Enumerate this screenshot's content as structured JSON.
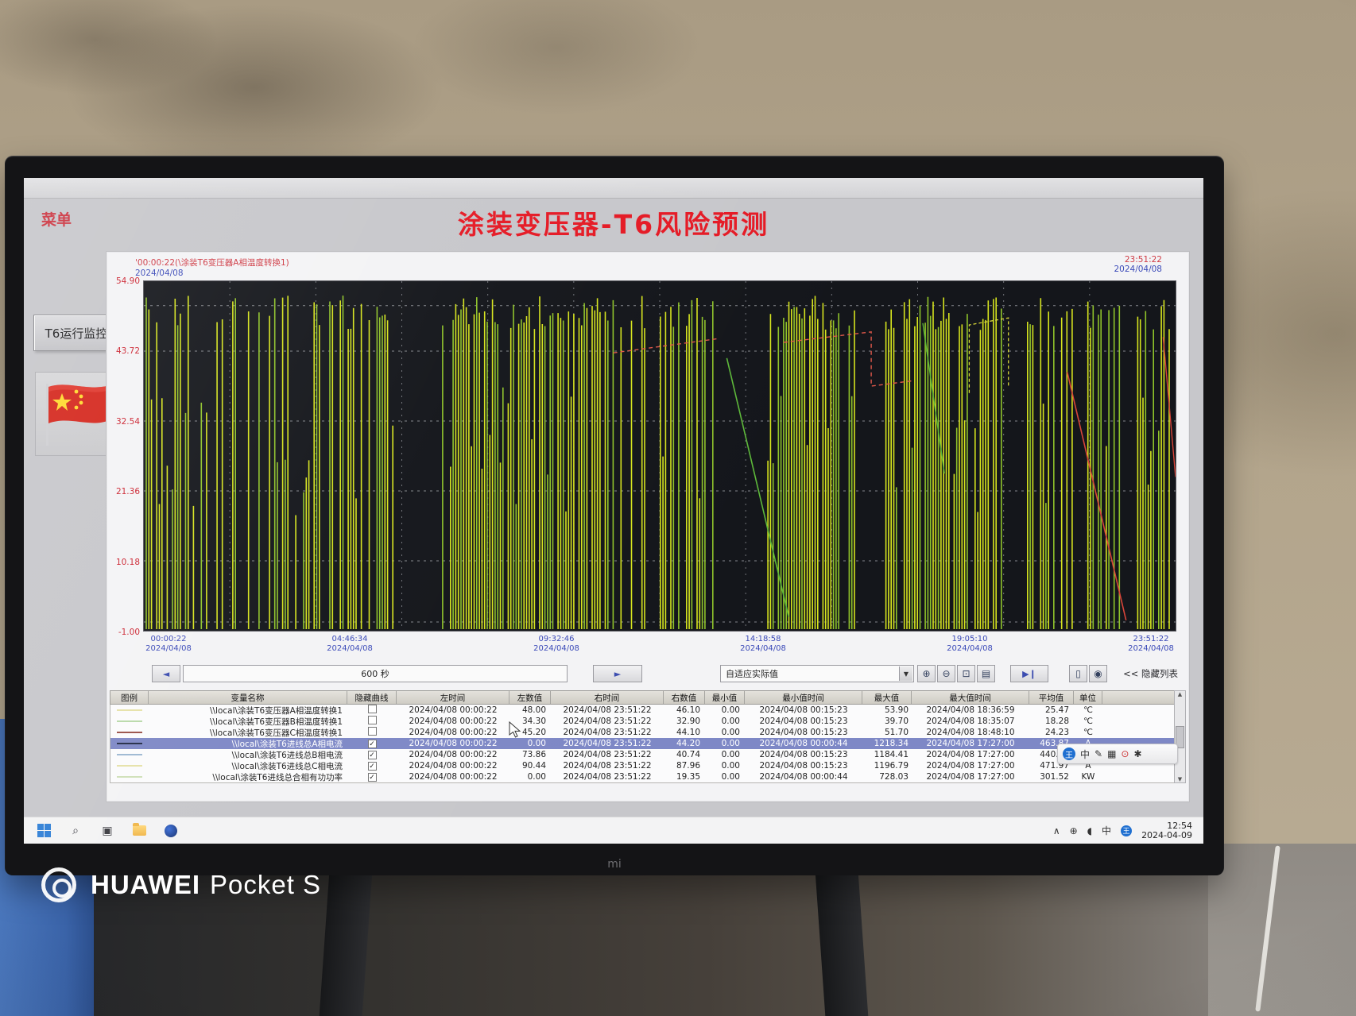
{
  "photo": {
    "watermark": {
      "brand": "HUAWEI",
      "model": "Pocket S"
    },
    "tv_brand": "mi"
  },
  "screen": {
    "menu_label": "菜单",
    "title": "涂装变压器-T6风险预测",
    "sidebar": {
      "monitor_button": "T6运行监控",
      "flag_icon": "china-flag"
    },
    "trend_header": {
      "left_label": "'00:00:22(\\涂装T6变压器A相温度转换1)",
      "left_date": "2024/04/08",
      "right_time": "23:51:22",
      "right_date": "2024/04/08"
    },
    "toolbar": {
      "prev_label": "◄",
      "interval_value": "600 秒",
      "next_label": "►",
      "scale_mode": "自适应实际值",
      "dropdown_arrow": "▼",
      "play_label": "▶❙",
      "hide_list_label": "<< 隐藏列表"
    },
    "table": {
      "headers": [
        "图例",
        "变量名称",
        "隐藏曲线",
        "左时间",
        "左数值",
        "右时间",
        "右数值",
        "最小值",
        "最小值时间",
        "最大值",
        "最大值时间",
        "平均值",
        "单位"
      ]
    },
    "ime": {
      "logo": "王",
      "lang": "中"
    },
    "taskbar": {
      "tray_lang": "中",
      "tray_logo": "王",
      "clock_time": "12:54",
      "clock_date": "2024-04-09"
    },
    "icons": {
      "search": "⌕",
      "task_view": "▣",
      "chevron_up": "∧",
      "globe": "⊕",
      "speaker": "◖",
      "zoom_in": "⊕",
      "zoom_out": "⊖",
      "zoom_box": "⊡",
      "printer": "▤",
      "copy": "▯",
      "settings": "◉",
      "pen": "✎",
      "keyboard": "▦",
      "palette": "⊙",
      "tool": "✱"
    }
  },
  "chart_data": {
    "type": "line",
    "title": "涂装变压器-T6风险预测",
    "x_range": [
      "2024/04/08 00:00:22",
      "2024/04/08 23:51:22"
    ],
    "x_ticks": [
      "00:00:22",
      "04:46:34",
      "09:32:46",
      "14:18:58",
      "19:05:10",
      "23:51:22"
    ],
    "x_tick_date": "2024/04/08",
    "ylim": [
      -1.0,
      54.9
    ],
    "y_ticks": [
      "54.90",
      "43.72",
      "32.54",
      "21.36",
      "10.18",
      "-1.00"
    ],
    "interval": "600 秒",
    "scale_mode": "自适应实际值",
    "grid": "white-dashed",
    "plot_background": "#14161b",
    "legend_position": "table-below",
    "series": [
      {
        "name": "\\\\local\\涂装T6变压器A相温度转换1",
        "legend_color": "#e6e2a8",
        "hidden": false,
        "left_time": "2024/04/08 00:00:22",
        "left_value": "48.00",
        "right_time": "2024/04/08 23:51:22",
        "right_value": "46.10",
        "min": "0.00",
        "min_time": "2024/04/08 00:15:23",
        "max": "53.90",
        "max_time": "2024/04/08 18:36:59",
        "avg": "25.47",
        "unit": "℃",
        "selected": false
      },
      {
        "name": "\\\\local\\涂装T6变压器B相温度转换1",
        "legend_color": "#b9d9a9",
        "hidden": false,
        "left_time": "2024/04/08 00:00:22",
        "left_value": "34.30",
        "right_time": "2024/04/08 23:51:22",
        "right_value": "32.90",
        "min": "0.00",
        "min_time": "2024/04/08 00:15:23",
        "max": "39.70",
        "max_time": "2024/04/08 18:35:07",
        "avg": "18.28",
        "unit": "℃",
        "selected": false
      },
      {
        "name": "\\\\local\\涂装T6变压器C相温度转换1",
        "legend_color": "#9a5148",
        "hidden": false,
        "left_time": "2024/04/08 00:00:22",
        "left_value": "45.20",
        "right_time": "2024/04/08 23:51:22",
        "right_value": "44.10",
        "min": "0.00",
        "min_time": "2024/04/08 00:15:23",
        "max": "51.70",
        "max_time": "2024/04/08 18:48:10",
        "avg": "24.23",
        "unit": "℃",
        "selected": false
      },
      {
        "name": "\\\\local\\涂装T6进线总A相电流",
        "legend_color": "#242c46",
        "hidden": true,
        "left_time": "2024/04/08 00:00:22",
        "left_value": "0.00",
        "right_time": "2024/04/08 23:51:22",
        "right_value": "44.20",
        "min": "0.00",
        "min_time": "2024/04/08 00:00:44",
        "max": "1218.34",
        "max_time": "2024/04/08 17:27:00",
        "avg": "463.87",
        "unit": "A",
        "selected": true
      },
      {
        "name": "\\\\local\\涂装T6进线总B相电流",
        "legend_color": "#9db8d2",
        "hidden": true,
        "left_time": "2024/04/08 00:00:22",
        "left_value": "73.86",
        "right_time": "2024/04/08 23:51:22",
        "right_value": "40.74",
        "min": "0.00",
        "min_time": "2024/04/08 00:15:23",
        "max": "1184.41",
        "max_time": "2024/04/08 17:27:00",
        "avg": "440.52",
        "unit": "A",
        "selected": false
      },
      {
        "name": "\\\\local\\涂装T6进线总C相电流",
        "legend_color": "#e6e2a8",
        "hidden": true,
        "left_time": "2024/04/08 00:00:22",
        "left_value": "90.44",
        "right_time": "2024/04/08 23:51:22",
        "right_value": "87.96",
        "min": "0.00",
        "min_time": "2024/04/08 00:15:23",
        "max": "1196.79",
        "max_time": "2024/04/08 17:27:00",
        "avg": "471.97",
        "unit": "A",
        "selected": false
      },
      {
        "name": "\\\\local\\涂装T6进线总合相有功功率",
        "legend_color": "#cfe0b8",
        "hidden": true,
        "left_time": "2024/04/08 00:00:22",
        "left_value": "0.00",
        "right_time": "2024/04/08 23:51:22",
        "right_value": "19.35",
        "min": "0.00",
        "min_time": "2024/04/08 00:00:44",
        "max": "728.03",
        "max_time": "2024/04/08 17:27:00",
        "avg": "301.52",
        "unit": "KW",
        "selected": false
      }
    ]
  }
}
